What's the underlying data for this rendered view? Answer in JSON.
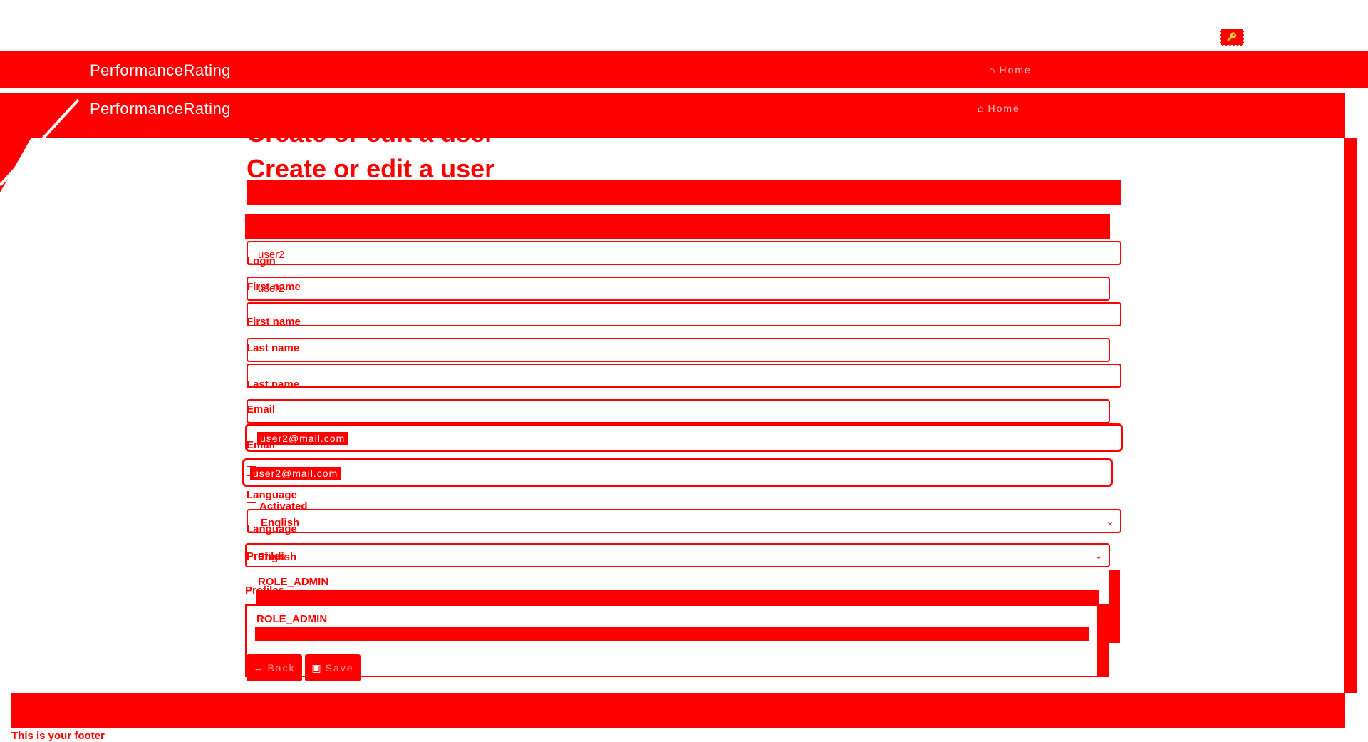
{
  "app": {
    "brand": "PerformanceRating",
    "home_label": "Home"
  },
  "page": {
    "title": "Create or edit a user"
  },
  "form": {
    "login_label": "Login",
    "login_value": "user2",
    "first_name_label": "First name",
    "first_name_value": "",
    "last_name_label": "Last name",
    "last_name_value": "",
    "email_label": "Email",
    "email_value": "user2@mail.com",
    "activated_label": "Activated",
    "language_label": "Language",
    "language_value": "English",
    "profiles_label": "Profiles",
    "profiles_options": [
      "ROLE_ADMIN"
    ],
    "back_label": "Back",
    "save_label": "Save"
  },
  "footer": {
    "text": "This is your footer"
  }
}
